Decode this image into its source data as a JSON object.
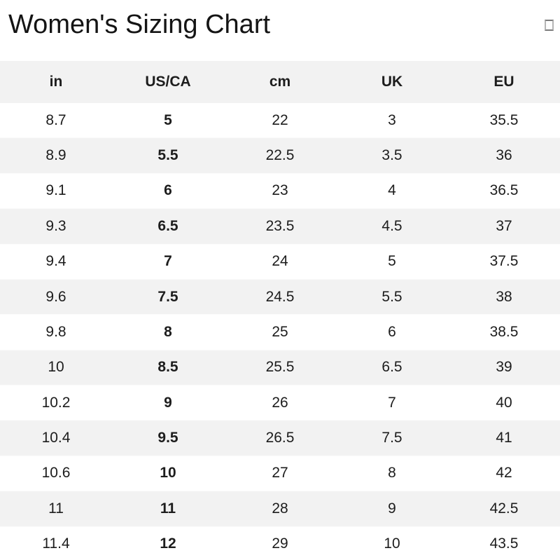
{
  "page": {
    "title": "Women's Sizing Chart",
    "corner_icon": "empty-box-glyph"
  },
  "colors": {
    "header_row_bg": "#f2f2f2",
    "alt_row_bg": "#f2f2f2",
    "row_bg": "#ffffff",
    "text": "#1d1d1d",
    "title_text": "#141414"
  },
  "sizing_table": {
    "columns": [
      "in",
      "US/CA",
      "cm",
      "UK",
      "EU"
    ],
    "bold_column_index": 1,
    "rows": [
      [
        "8.7",
        "5",
        "22",
        "3",
        "35.5"
      ],
      [
        "8.9",
        "5.5",
        "22.5",
        "3.5",
        "36"
      ],
      [
        "9.1",
        "6",
        "23",
        "4",
        "36.5"
      ],
      [
        "9.3",
        "6.5",
        "23.5",
        "4.5",
        "37"
      ],
      [
        "9.4",
        "7",
        "24",
        "5",
        "37.5"
      ],
      [
        "9.6",
        "7.5",
        "24.5",
        "5.5",
        "38"
      ],
      [
        "9.8",
        "8",
        "25",
        "6",
        "38.5"
      ],
      [
        "10",
        "8.5",
        "25.5",
        "6.5",
        "39"
      ],
      [
        "10.2",
        "9",
        "26",
        "7",
        "40"
      ],
      [
        "10.4",
        "9.5",
        "26.5",
        "7.5",
        "41"
      ],
      [
        "10.6",
        "10",
        "27",
        "8",
        "42"
      ],
      [
        "11",
        "11",
        "28",
        "9",
        "42.5"
      ],
      [
        "11.4",
        "12",
        "29",
        "10",
        "43.5"
      ]
    ]
  }
}
